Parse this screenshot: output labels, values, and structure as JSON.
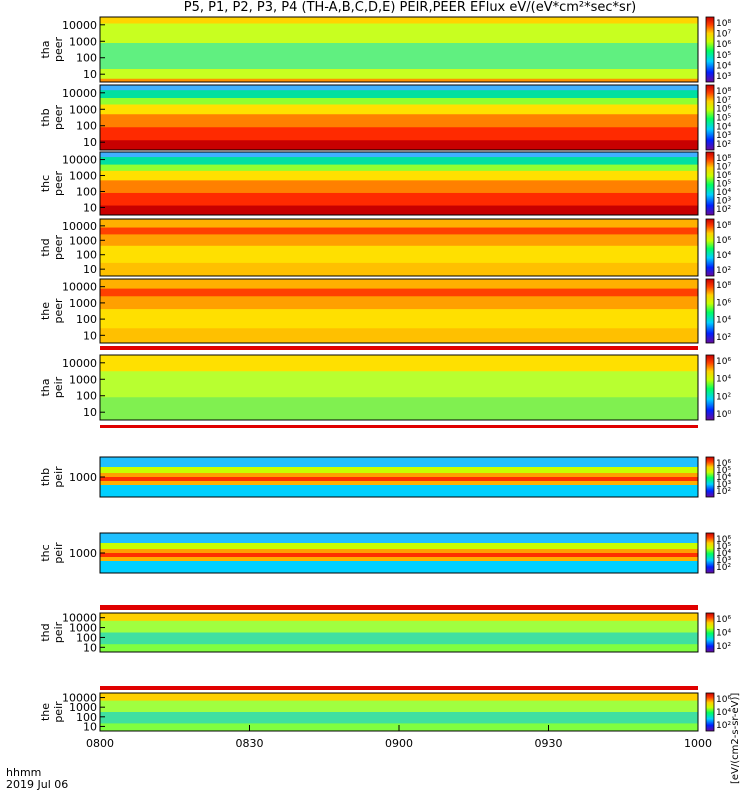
{
  "title": "P5, P1, P2, P3, P4 (TH-A,B,C,D,E) PEIR,PEER EFlux eV/(eV*cm²*sec*sr)",
  "colorbar_unit": "[eV/(cm2-s-sr-eV)]",
  "time_label": "hhmm",
  "date_label": "2019 Jul 06",
  "x_ticks": [
    "0800",
    "0830",
    "0900",
    "0930",
    "1000"
  ],
  "chart_data": {
    "type": "heatmap",
    "x_range": [
      "0800",
      "1000"
    ],
    "panels": [
      {
        "probe": "tha",
        "product": "peer",
        "label1": "tha",
        "label2": "peer",
        "yscale": "log",
        "yticks": [
          "10000",
          "1000",
          "100",
          "10"
        ],
        "cbar_ticks": [
          "10⁸",
          "10⁷",
          "10⁶",
          "10⁵",
          "10⁴",
          "10³"
        ]
      },
      {
        "probe": "thb",
        "product": "peer",
        "label1": "thb",
        "label2": "peer",
        "yscale": "log",
        "yticks": [
          "10000",
          "1000",
          "100",
          "10"
        ],
        "cbar_ticks": [
          "10⁸",
          "10⁷",
          "10⁶",
          "10⁵",
          "10⁴",
          "10³",
          "10²"
        ]
      },
      {
        "probe": "thc",
        "product": "peer",
        "label1": "thc",
        "label2": "peer",
        "yscale": "log",
        "yticks": [
          "10000",
          "1000",
          "100",
          "10"
        ],
        "cbar_ticks": [
          "10⁸",
          "10⁷",
          "10⁶",
          "10⁵",
          "10⁴",
          "10³",
          "10²"
        ]
      },
      {
        "probe": "thd",
        "product": "peer",
        "label1": "thd",
        "label2": "peer",
        "yscale": "log",
        "yticks": [
          "10000",
          "1000",
          "100",
          "10"
        ],
        "cbar_ticks": [
          "10⁸",
          "10⁶",
          "10⁴",
          "10²"
        ]
      },
      {
        "probe": "the",
        "product": "peer",
        "label1": "the",
        "label2": "peer",
        "yscale": "log",
        "yticks": [
          "10000",
          "1000",
          "100",
          "10"
        ],
        "cbar_ticks": [
          "10⁸",
          "10⁶",
          "10⁴",
          "10²"
        ]
      },
      {
        "probe": "tha",
        "product": "peir",
        "label1": "tha",
        "label2": "peir",
        "yscale": "log",
        "yticks": [
          "10000",
          "1000",
          "100",
          "10"
        ],
        "cbar_ticks": [
          "10⁶",
          "10⁴",
          "10²",
          "10⁰"
        ]
      },
      {
        "probe": "thb",
        "product": "peir",
        "label1": "thb",
        "label2": "peir",
        "yscale": "log",
        "yticks": [
          "1000"
        ],
        "cbar_ticks": [
          "10⁶",
          "10⁵",
          "10⁴",
          "10³",
          "10²"
        ]
      },
      {
        "probe": "thc",
        "product": "peir",
        "label1": "thc",
        "label2": "peir",
        "yscale": "log",
        "yticks": [
          "1000"
        ],
        "cbar_ticks": [
          "10⁶",
          "10⁵",
          "10⁴",
          "10³",
          "10²"
        ]
      },
      {
        "probe": "thd",
        "product": "peir",
        "label1": "thd",
        "label2": "peir",
        "yscale": "log",
        "yticks": [
          "10000",
          "1000",
          "100",
          "10"
        ],
        "cbar_ticks": [
          "10⁶",
          "10⁴",
          "10²"
        ]
      },
      {
        "probe": "the",
        "product": "peir",
        "label1": "the",
        "label2": "peir",
        "yscale": "log",
        "yticks": [
          "10000",
          "1000",
          "100",
          "10"
        ],
        "cbar_ticks": [
          "10⁶",
          "10⁴",
          "10²"
        ]
      }
    ]
  }
}
